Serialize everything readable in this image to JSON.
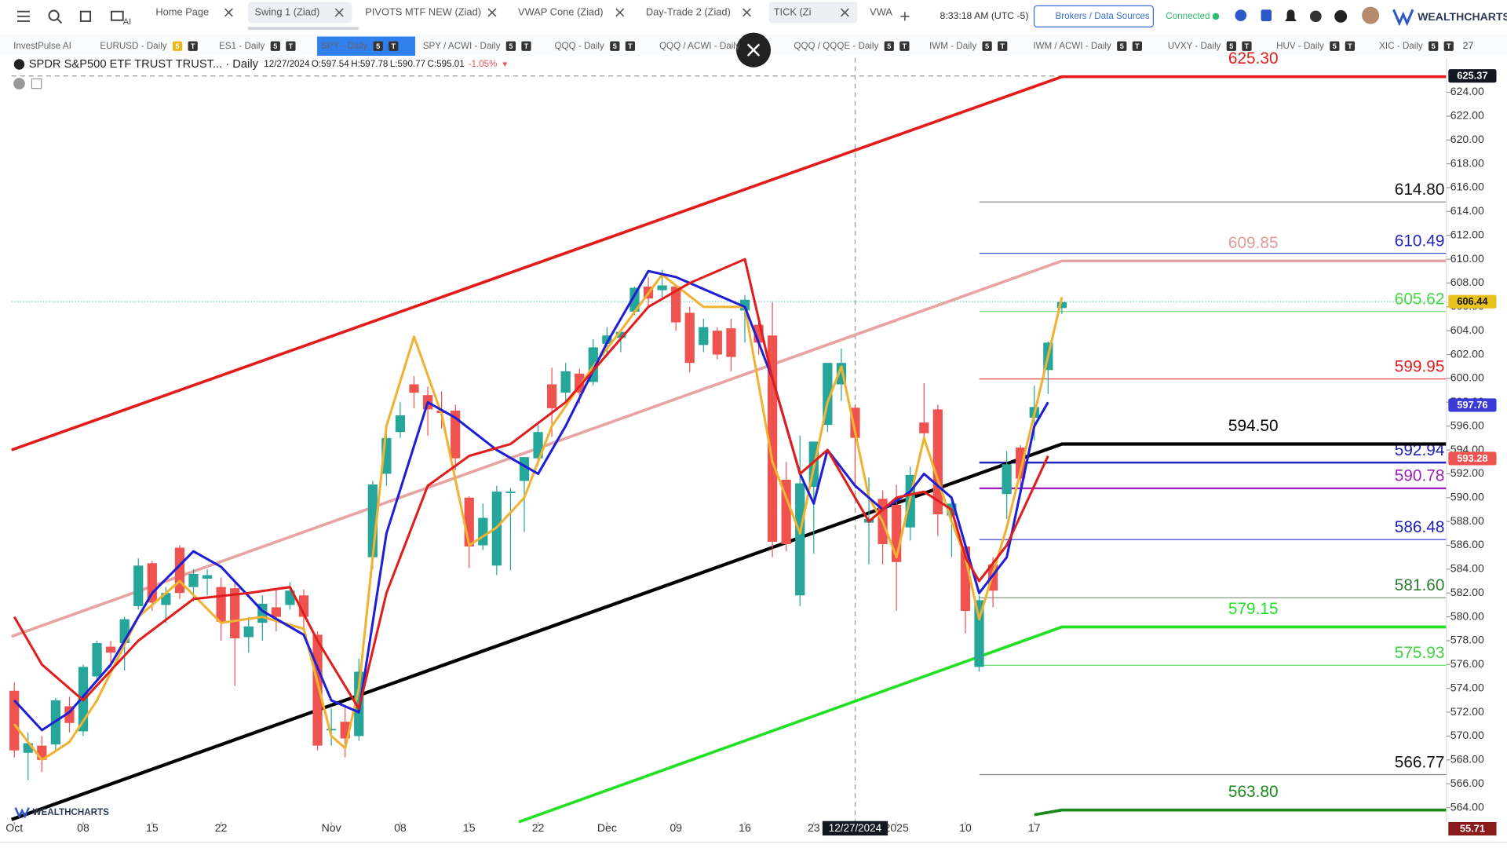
{
  "top_tabs": [
    "Home Page",
    "Swing 1 (Ziad)",
    "PIVOTS MTF NEW (Ziad)",
    "VWAP Cone (Ziad)",
    "Day-Trade 2 (Ziad)",
    "TICK (Zi",
    "VWA"
  ],
  "clock": "8:33:18 AM (UTC -5)",
  "brokers_button": "Brokers / Data Sources",
  "status": "Connected",
  "brand": "WEALTHCHARTS",
  "ai_label": "AI",
  "chart_tabs": [
    "InvestPulse AI",
    "EURUSD - Daily",
    "ES1 - Daily",
    "SPY - Daily",
    "SPY / ACWI - Daily",
    "QQQ - Daily",
    "QQQ / ACWI - Daily",
    "QQQ / QQQE - Daily",
    "IWM - Daily",
    "IWM / ACWI - Daily",
    "UVXY - Daily",
    "HUV - Daily",
    "XIC - Daily"
  ],
  "chart_tab_badges": [
    "5",
    "T"
  ],
  "chart_tab_count": "27",
  "chart_data": {
    "type": "candlestick",
    "title": "SPDR S&P500 ETF TRUST TRUST... · Daily",
    "readout_date": "12/27/2024",
    "readout": [
      "O:597.54",
      "H:597.78",
      "L:590.77",
      "C:595.01",
      "-1.05%"
    ],
    "up_color": "#26a69a",
    "down_color": "#ef5350",
    "xlim": [
      -0.2,
      103.9
    ],
    "ylim": [
      562.79,
      626.9
    ],
    "xticks": [
      {
        "value": 0,
        "label": "Oct"
      },
      {
        "value": 5,
        "label": "08"
      },
      {
        "value": 10,
        "label": "15"
      },
      {
        "value": 15,
        "label": "22"
      },
      {
        "value": 23,
        "label": "Nov"
      },
      {
        "value": 28,
        "label": "08"
      },
      {
        "value": 33,
        "label": "15"
      },
      {
        "value": 38,
        "label": "22"
      },
      {
        "value": 43,
        "label": "Dec"
      },
      {
        "value": 48,
        "label": "09"
      },
      {
        "value": 53,
        "label": "16"
      },
      {
        "value": 58,
        "label": "23"
      },
      {
        "value": 64,
        "label": "2025"
      },
      {
        "value": 69,
        "label": "10"
      },
      {
        "value": 74,
        "label": "17"
      }
    ],
    "yticks": [
      {
        "value": 564,
        "label": "564.00"
      },
      {
        "value": 566,
        "label": "566.00"
      },
      {
        "value": 568,
        "label": "568.00"
      },
      {
        "value": 570,
        "label": "570.00"
      },
      {
        "value": 572,
        "label": "572.00"
      },
      {
        "value": 574,
        "label": "574.00"
      },
      {
        "value": 576,
        "label": "576.00"
      },
      {
        "value": 578,
        "label": "578.00"
      },
      {
        "value": 580,
        "label": "580.00"
      },
      {
        "value": 582,
        "label": "582.00"
      },
      {
        "value": 584,
        "label": "584.00"
      },
      {
        "value": 586,
        "label": "586.00"
      },
      {
        "value": 588,
        "label": "588.00"
      },
      {
        "value": 590,
        "label": "590.00"
      },
      {
        "value": 592,
        "label": "592.00"
      },
      {
        "value": 594,
        "label": "594.00"
      },
      {
        "value": 596,
        "label": "596.00"
      },
      {
        "value": 598,
        "label": "598.00"
      },
      {
        "value": 600,
        "label": "600.00"
      },
      {
        "value": 602,
        "label": "602.00"
      },
      {
        "value": 604,
        "label": "604.00"
      },
      {
        "value": 606,
        "label": "606.00"
      },
      {
        "value": 608,
        "label": "608.00"
      },
      {
        "value": 610,
        "label": "610.00"
      },
      {
        "value": 612,
        "label": "612.00"
      },
      {
        "value": 614,
        "label": "614.00"
      },
      {
        "value": 616,
        "label": "616.00"
      },
      {
        "value": 618,
        "label": "618.00"
      },
      {
        "value": 620,
        "label": "620.00"
      },
      {
        "value": 622,
        "label": "622.00"
      },
      {
        "value": 624,
        "label": "624.00"
      }
    ],
    "ohlc": [
      [
        573.8,
        574.5,
        568.2,
        568.8
      ],
      [
        568.6,
        570.3,
        566.3,
        569.4
      ],
      [
        569.2,
        570.0,
        567.0,
        568.0
      ],
      [
        569.3,
        573.2,
        568.8,
        573.0
      ],
      [
        572.5,
        573.3,
        570.3,
        571.1
      ],
      [
        570.4,
        576.0,
        570.0,
        575.8
      ],
      [
        575.0,
        578.0,
        574.5,
        577.8
      ],
      [
        577.5,
        578.0,
        575.8,
        577.0
      ],
      [
        577.8,
        580.0,
        575.5,
        579.8
      ],
      [
        580.9,
        584.9,
        580.6,
        584.3
      ],
      [
        584.5,
        584.7,
        580.5,
        581.2
      ],
      [
        581.0,
        582.5,
        579.5,
        582.0
      ],
      [
        585.8,
        586.0,
        581.5,
        582.0
      ],
      [
        582.5,
        584.0,
        581.3,
        583.6
      ],
      [
        583.2,
        584.0,
        581.8,
        583.5
      ],
      [
        582.5,
        583.3,
        578.0,
        579.6
      ],
      [
        582.4,
        583.0,
        574.2,
        578.2
      ],
      [
        578.3,
        580.0,
        577.0,
        579.2
      ],
      [
        579.5,
        581.8,
        578.0,
        581.1
      ],
      [
        580.8,
        582.4,
        578.8,
        580.0
      ],
      [
        581.0,
        582.9,
        580.6,
        582.2
      ],
      [
        581.8,
        582.3,
        579.0,
        580.0
      ],
      [
        578.5,
        578.8,
        568.8,
        569.2
      ],
      [
        570.6,
        572.3,
        569.2,
        570.6
      ],
      [
        571.2,
        572.5,
        568.2,
        569.8
      ],
      [
        570.0,
        576.5,
        569.6,
        575.4
      ],
      [
        585.0,
        591.4,
        584.0,
        591.1
      ],
      [
        592.0,
        595.4,
        591.0,
        595.0
      ],
      [
        595.5,
        598.0,
        595.0,
        596.9
      ],
      [
        599.5,
        600.2,
        597.5,
        598.8
      ],
      [
        598.6,
        599.3,
        595.2,
        597.4
      ],
      [
        597.3,
        598.9,
        595.8,
        597.1
      ],
      [
        597.3,
        597.8,
        592.3,
        593.3
      ],
      [
        590.0,
        590.1,
        584.1,
        585.9
      ],
      [
        586.0,
        589.5,
        585.6,
        588.3
      ],
      [
        584.3,
        591.0,
        583.5,
        590.5
      ],
      [
        590.4,
        590.8,
        583.9,
        590.5
      ],
      [
        591.4,
        593.4,
        587.1,
        593.4
      ],
      [
        593.3,
        596.1,
        592.7,
        595.5
      ],
      [
        599.5,
        600.9,
        595.1,
        597.5
      ],
      [
        598.8,
        601.3,
        598.1,
        600.6
      ],
      [
        600.4,
        600.8,
        597.9,
        598.8
      ],
      [
        599.7,
        603.3,
        599.4,
        602.6
      ],
      [
        602.9,
        604.3,
        602.0,
        603.6
      ],
      [
        603.4,
        604.0,
        602.2,
        603.9
      ],
      [
        605.6,
        607.7,
        605.3,
        607.6
      ],
      [
        607.7,
        608.5,
        606.0,
        606.7
      ],
      [
        607.4,
        609.1,
        606.8,
        607.8
      ],
      [
        607.7,
        607.9,
        604.0,
        604.7
      ],
      [
        605.5,
        606.0,
        600.5,
        601.3
      ],
      [
        602.8,
        605.0,
        602.2,
        604.3
      ],
      [
        604.0,
        604.3,
        601.6,
        602.0
      ],
      [
        604.2,
        605.0,
        600.6,
        601.8
      ],
      [
        605.7,
        607.0,
        603.0,
        606.6
      ],
      [
        604.5,
        605.2,
        602.0,
        603.0
      ],
      [
        603.6,
        606.4,
        585.0,
        586.3
      ],
      [
        591.5,
        593.0,
        585.5,
        586.1
      ],
      [
        581.8,
        595.2,
        580.9,
        591.2
      ],
      [
        590.9,
        594.7,
        585.3,
        594.7
      ],
      [
        596.1,
        601.3,
        595.5,
        601.3
      ],
      [
        599.5,
        602.5,
        598.1,
        601.3
      ],
      [
        597.54,
        597.78,
        590.77,
        595.01
      ],
      [
        587.9,
        591.7,
        584.4,
        588.2
      ],
      [
        589.9,
        590.6,
        584.4,
        586.1
      ],
      [
        589.4,
        591.1,
        580.5,
        584.6
      ],
      [
        587.5,
        592.6,
        586.4,
        591.9
      ],
      [
        596.3,
        599.6,
        594.6,
        595.4
      ],
      [
        597.4,
        597.8,
        586.8,
        588.6
      ],
      [
        588.5,
        589.8,
        585.0,
        589.5
      ],
      [
        585.9,
        585.9,
        578.6,
        580.5
      ],
      [
        575.8,
        581.8,
        575.4,
        581.4
      ],
      [
        584.4,
        585.0,
        580.8,
        582.2
      ],
      [
        590.3,
        593.9,
        588.2,
        592.8
      ],
      [
        594.2,
        594.4,
        590.8,
        591.6
      ],
      [
        596.7,
        599.4,
        594.8,
        597.6
      ],
      [
        600.7,
        603.1,
        598.7,
        603.0
      ],
      [
        605.9,
        606.8,
        605.4,
        606.4
      ]
    ],
    "indicators": [
      {
        "color": "#f0b232",
        "x": [
          0,
          2,
          4,
          6,
          9,
          12,
          15,
          18,
          21,
          23,
          24,
          25,
          27,
          29,
          31,
          33,
          35,
          37,
          39,
          42,
          44,
          47,
          50,
          53,
          55,
          57,
          59,
          60,
          62,
          63,
          64,
          66,
          68,
          69,
          70,
          72,
          74,
          76
        ],
        "values": [
          571,
          568,
          569.5,
          573,
          580,
          583,
          579.5,
          580,
          579,
          570,
          569,
          574,
          596,
          603.5,
          597,
          586,
          587.5,
          590,
          596,
          601,
          604,
          608.7,
          606,
          606,
          593,
          587,
          598,
          601,
          590,
          588,
          585,
          595,
          588,
          585,
          579.8,
          587.5,
          597,
          606.8
        ]
      },
      {
        "color": "#1f1fd6",
        "x": [
          0,
          2,
          4,
          7,
          10,
          13,
          15,
          18,
          21,
          23,
          25,
          27,
          30,
          32,
          35,
          38,
          40,
          43,
          46,
          48,
          51,
          53,
          55,
          57,
          58,
          59,
          61,
          63,
          65,
          66,
          68,
          70,
          72,
          74,
          75
        ],
        "values": [
          573,
          570.5,
          572,
          576,
          582,
          585.5,
          584.2,
          580.5,
          578.5,
          573,
          572,
          587,
          598,
          596.7,
          594,
          592,
          596,
          603,
          609,
          608.5,
          607,
          606,
          600,
          592,
          589.5,
          594,
          591,
          589,
          590.5,
          592,
          590,
          582,
          585,
          596,
          598
        ]
      },
      {
        "color": "#e01e1e",
        "x": [
          0,
          2,
          5,
          9,
          13,
          17,
          20,
          22,
          25,
          27,
          30,
          33,
          36,
          40,
          43,
          46,
          49,
          53,
          55,
          57,
          59,
          62,
          64,
          66,
          68,
          69,
          70,
          72,
          75
        ],
        "values": [
          580,
          576,
          573,
          578,
          581.5,
          582,
          582.5,
          578,
          572.3,
          582,
          591,
          593.5,
          594.5,
          598,
          602,
          606,
          608,
          610,
          600,
          592,
          594,
          588,
          590,
          590.5,
          589,
          585,
          583,
          586,
          593.5
        ]
      }
    ],
    "trendlines": [
      {
        "color": "#e31b1b",
        "width": 3,
        "x": [
          -0.2,
          76,
          103.9
        ],
        "values": [
          594.0,
          625.3,
          625.3
        ],
        "label": "625.30"
      },
      {
        "color": "#e8a3a3",
        "width": 3,
        "x": [
          -0.2,
          76,
          103.9
        ],
        "values": [
          578.35,
          609.85,
          609.85
        ],
        "label": "609.85"
      },
      {
        "color": "#000000",
        "width": 3.5,
        "x": [
          -0.2,
          76,
          103.9
        ],
        "values": [
          563.0,
          594.5,
          594.5
        ],
        "label": "594.50"
      },
      {
        "color": "#22e022",
        "width": 3,
        "x": [
          36.6,
          76,
          103.9
        ],
        "values": [
          562.8,
          579.15,
          579.15
        ],
        "label": "579.15"
      },
      {
        "color": "#1a8a1a",
        "width": 3,
        "x": [
          74,
          76,
          103.9
        ],
        "values": [
          563.4,
          563.8,
          563.8
        ],
        "label": "563.80"
      }
    ],
    "levels": [
      {
        "value": 614.8,
        "label": "614.80",
        "color": "#888888",
        "label_color": "#111111"
      },
      {
        "value": 610.49,
        "label": "610.49",
        "color": "#4a4ad6",
        "label_color": "#2525c0"
      },
      {
        "value": 605.62,
        "label": "605.62",
        "color": "#7ee07e",
        "label_color": "#45d845"
      },
      {
        "value": 599.95,
        "label": "599.95",
        "color": "#e53935",
        "label_color": "#e02020"
      },
      {
        "value": 592.94,
        "label": "592.94",
        "color": "#2020c8",
        "label_color": "#2020b8"
      },
      {
        "value": 590.78,
        "label": "590.78",
        "color": "#a020c0",
        "label_color": "#9a20b8"
      },
      {
        "value": 586.48,
        "label": "586.48",
        "color": "#4a4ad6",
        "label_color": "#2020b8"
      },
      {
        "value": 581.6,
        "label": "581.60",
        "color": "#7a8f7a",
        "label_color": "#2e7d32"
      },
      {
        "value": 575.93,
        "label": "575.93",
        "color": "#6ee06e",
        "label_color": "#3fd13f"
      },
      {
        "value": 566.77,
        "label": "566.77",
        "color": "#888888",
        "label_color": "#111111"
      }
    ],
    "price_badges": [
      {
        "value": 625.37,
        "label": "625.37",
        "color": "#131722"
      },
      {
        "value": 606.44,
        "label": "606.44",
        "color": "#e8c21a"
      },
      {
        "value": 597.76,
        "label": "597.76",
        "color": "#3a3ad8"
      },
      {
        "value": 593.28,
        "label": "593.28",
        "color": "#ef5350"
      }
    ],
    "last_price": 606.44,
    "crosshair_x": 61,
    "crosshair_y": 625.37,
    "footer_badge": "55.71"
  }
}
